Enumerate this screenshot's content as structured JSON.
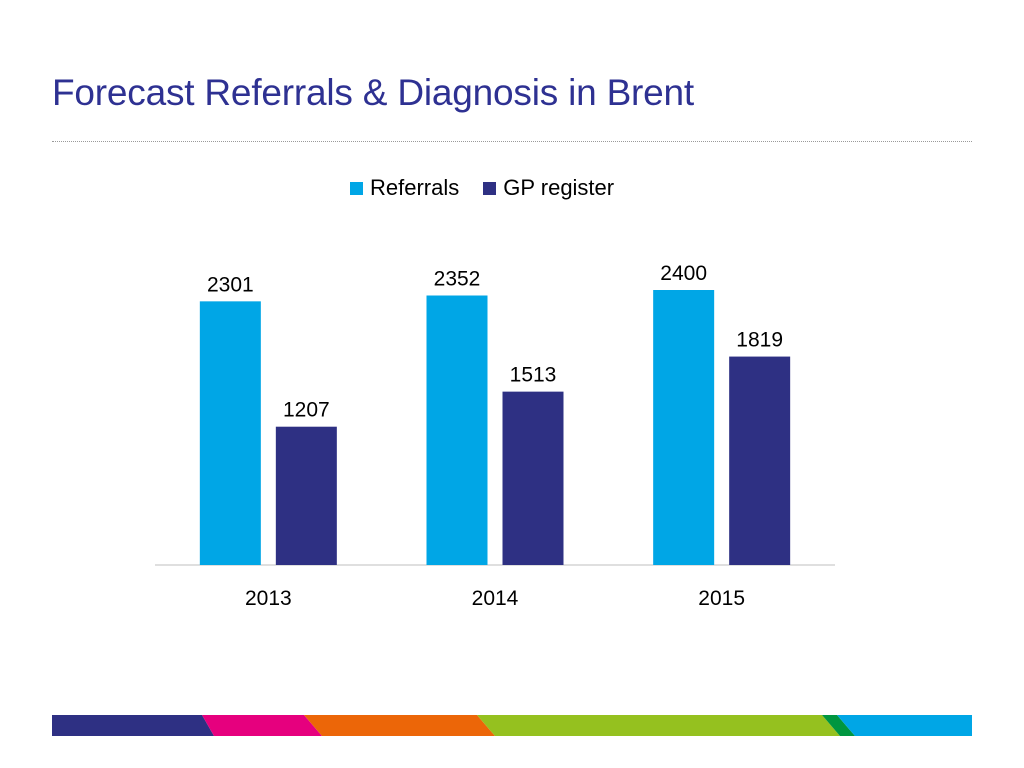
{
  "slide": {
    "title": "Forecast Referrals & Diagnosis in Brent"
  },
  "chart_data": {
    "type": "bar",
    "title": "",
    "xlabel": "",
    "ylabel": "",
    "categories": [
      "2013",
      "2014",
      "2015"
    ],
    "series": [
      {
        "name": "Referrals",
        "values": [
          2301,
          2352,
          2400
        ],
        "color": "#00A6E6"
      },
      {
        "name": "GP register",
        "values": [
          1207,
          1513,
          1819
        ],
        "color": "#2E3083"
      }
    ],
    "ylim": [
      0,
      2400
    ],
    "legend": "top-center",
    "grid": false
  },
  "footer": {
    "band_colors": [
      "#2E3083",
      "#E6007E",
      "#EC6608",
      "#95C11F",
      "#009640",
      "#00A6E6"
    ]
  }
}
